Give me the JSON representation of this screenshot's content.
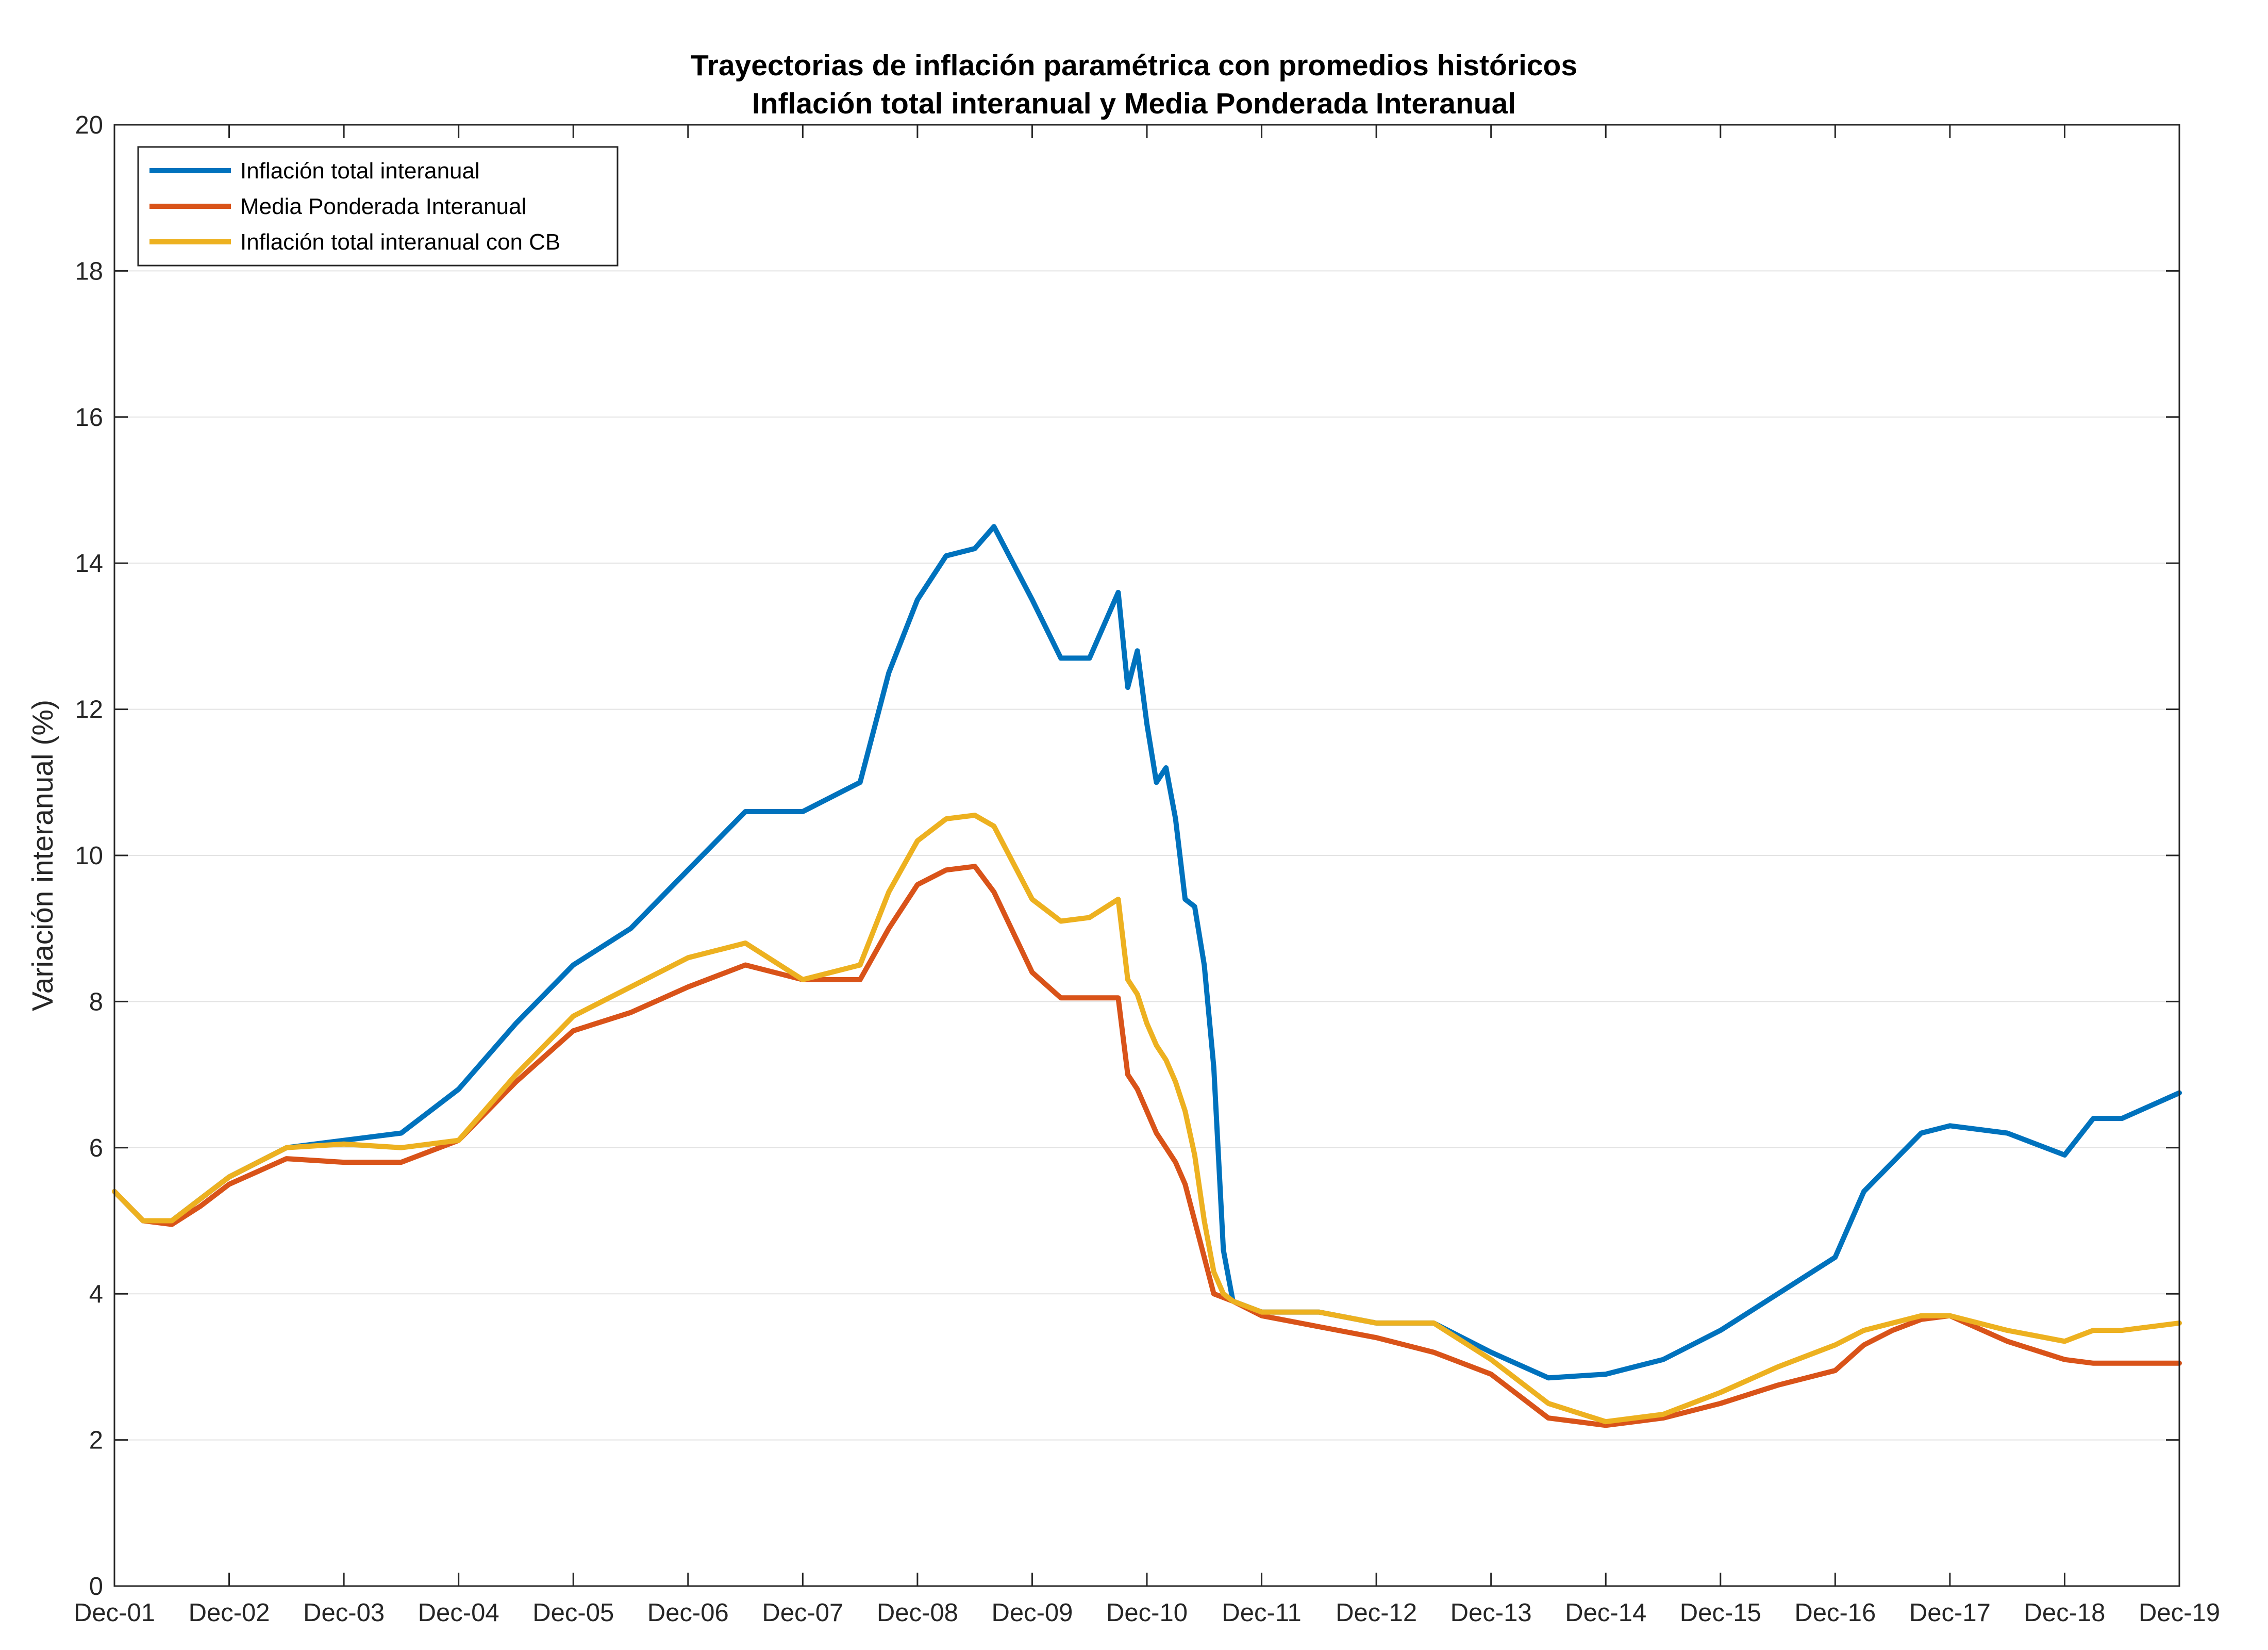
{
  "chart_data": {
    "type": "line",
    "title": "Trayectorias de inflación paramétrica con promedios históricos",
    "subtitle": "Inflación total interanual y Media Ponderada Interanual",
    "ylabel": "Variación interanual (%)",
    "xlabel": "",
    "ylim": [
      0,
      20
    ],
    "yticks": [
      "0",
      "2",
      "4",
      "6",
      "8",
      "10",
      "12",
      "14",
      "16",
      "18",
      "20"
    ],
    "x_tick_labels": [
      "Dec-01",
      "Dec-02",
      "Dec-03",
      "Dec-04",
      "Dec-05",
      "Dec-06",
      "Dec-07",
      "Dec-08",
      "Dec-09",
      "Dec-10",
      "Dec-11",
      "Dec-12",
      "Dec-13",
      "Dec-14",
      "Dec-15",
      "Dec-16",
      "Dec-17",
      "Dec-18",
      "Dec-19"
    ],
    "grid": true,
    "legend_position": "top-left",
    "series": [
      {
        "name": "Inflación total interanual",
        "color": "#0072BD",
        "points": [
          [
            "Dec-01",
            5.4
          ],
          [
            "Mar-02",
            5.0
          ],
          [
            "Jun-02",
            5.0
          ],
          [
            "Sep-02",
            5.3
          ],
          [
            "Dec-02",
            5.6
          ],
          [
            "Jun-03",
            6.0
          ],
          [
            "Dec-03",
            6.1
          ],
          [
            "Jun-04",
            6.2
          ],
          [
            "Dec-04",
            6.8
          ],
          [
            "Jun-05",
            7.7
          ],
          [
            "Dec-05",
            8.5
          ],
          [
            "Jun-06",
            9.0
          ],
          [
            "Dec-06",
            9.8
          ],
          [
            "Jun-07",
            10.6
          ],
          [
            "Dec-07",
            10.6
          ],
          [
            "Jun-08",
            11.0
          ],
          [
            "Sep-08",
            12.5
          ],
          [
            "Dec-08",
            13.5
          ],
          [
            "Mar-09",
            14.1
          ],
          [
            "Jun-09",
            14.2
          ],
          [
            "Aug-09",
            14.5
          ],
          [
            "Dec-09",
            13.5
          ],
          [
            "Mar-10",
            12.7
          ],
          [
            "Jun-10",
            12.7
          ],
          [
            "Sep-10",
            13.6
          ],
          [
            "Oct-10",
            12.3
          ],
          [
            "Nov-10",
            12.8
          ],
          [
            "Dec-10",
            11.8
          ],
          [
            "Jan-11",
            11.0
          ],
          [
            "Feb-11",
            11.2
          ],
          [
            "Mar-11",
            10.5
          ],
          [
            "Apr-11",
            9.4
          ],
          [
            "May-11",
            9.3
          ],
          [
            "Jun-11",
            8.5
          ],
          [
            "Jul-11",
            7.1
          ],
          [
            "Aug-11",
            4.6
          ],
          [
            "Sep-11",
            3.9
          ],
          [
            "Dec-11",
            3.75
          ],
          [
            "Jun-12",
            3.75
          ],
          [
            "Dec-12",
            3.6
          ],
          [
            "Jun-13",
            3.6
          ],
          [
            "Dec-13",
            3.2
          ],
          [
            "Jun-14",
            2.85
          ],
          [
            "Dec-14",
            2.9
          ],
          [
            "Jun-15",
            3.1
          ],
          [
            "Dec-15",
            3.5
          ],
          [
            "Jun-16",
            4.0
          ],
          [
            "Dec-16",
            4.5
          ],
          [
            "Mar-17",
            5.4
          ],
          [
            "Jun-17",
            5.8
          ],
          [
            "Sep-17",
            6.2
          ],
          [
            "Dec-17",
            6.3
          ],
          [
            "Jun-18",
            6.2
          ],
          [
            "Dec-18",
            5.9
          ],
          [
            "Mar-19",
            6.4
          ],
          [
            "Jun-19",
            6.4
          ],
          [
            "Dec-19",
            6.75
          ]
        ]
      },
      {
        "name": "Media Ponderada Interanual",
        "color": "#D95319",
        "points": [
          [
            "Dec-01",
            5.4
          ],
          [
            "Mar-02",
            5.0
          ],
          [
            "Jun-02",
            4.95
          ],
          [
            "Sep-02",
            5.2
          ],
          [
            "Dec-02",
            5.5
          ],
          [
            "Jun-03",
            5.85
          ],
          [
            "Dec-03",
            5.8
          ],
          [
            "Jun-04",
            5.8
          ],
          [
            "Dec-04",
            6.1
          ],
          [
            "Jun-05",
            6.9
          ],
          [
            "Dec-05",
            7.6
          ],
          [
            "Jun-06",
            7.85
          ],
          [
            "Dec-06",
            8.2
          ],
          [
            "Jun-07",
            8.5
          ],
          [
            "Dec-07",
            8.3
          ],
          [
            "Jun-08",
            8.3
          ],
          [
            "Sep-08",
            9.0
          ],
          [
            "Dec-08",
            9.6
          ],
          [
            "Mar-09",
            9.8
          ],
          [
            "Jun-09",
            9.85
          ],
          [
            "Aug-09",
            9.5
          ],
          [
            "Dec-09",
            8.4
          ],
          [
            "Mar-10",
            8.05
          ],
          [
            "Jun-10",
            8.05
          ],
          [
            "Sep-10",
            8.05
          ],
          [
            "Oct-10",
            7.0
          ],
          [
            "Nov-10",
            6.8
          ],
          [
            "Dec-10",
            6.5
          ],
          [
            "Jan-11",
            6.2
          ],
          [
            "Feb-11",
            6.0
          ],
          [
            "Mar-11",
            5.8
          ],
          [
            "Apr-11",
            5.5
          ],
          [
            "May-11",
            5.0
          ],
          [
            "Jun-11",
            4.5
          ],
          [
            "Jul-11",
            4.0
          ],
          [
            "Aug-11",
            3.95
          ],
          [
            "Sep-11",
            3.9
          ],
          [
            "Dec-11",
            3.7
          ],
          [
            "Jun-12",
            3.55
          ],
          [
            "Dec-12",
            3.4
          ],
          [
            "Jun-13",
            3.2
          ],
          [
            "Dec-13",
            2.9
          ],
          [
            "Jun-14",
            2.3
          ],
          [
            "Dec-14",
            2.2
          ],
          [
            "Jun-15",
            2.3
          ],
          [
            "Dec-15",
            2.5
          ],
          [
            "Jun-16",
            2.75
          ],
          [
            "Dec-16",
            2.95
          ],
          [
            "Mar-17",
            3.3
          ],
          [
            "Jun-17",
            3.5
          ],
          [
            "Sep-17",
            3.65
          ],
          [
            "Dec-17",
            3.7
          ],
          [
            "Jun-18",
            3.35
          ],
          [
            "Dec-18",
            3.1
          ],
          [
            "Mar-19",
            3.05
          ],
          [
            "Jun-19",
            3.05
          ],
          [
            "Dec-19",
            3.05
          ]
        ]
      },
      {
        "name": "Inflación total interanual con CB",
        "color": "#EDB120",
        "points": [
          [
            "Dec-01",
            5.4
          ],
          [
            "Mar-02",
            5.0
          ],
          [
            "Jun-02",
            5.0
          ],
          [
            "Sep-02",
            5.3
          ],
          [
            "Dec-02",
            5.6
          ],
          [
            "Jun-03",
            6.0
          ],
          [
            "Dec-03",
            6.05
          ],
          [
            "Jun-04",
            6.0
          ],
          [
            "Dec-04",
            6.1
          ],
          [
            "Jun-05",
            7.0
          ],
          [
            "Dec-05",
            7.8
          ],
          [
            "Jun-06",
            8.2
          ],
          [
            "Dec-06",
            8.6
          ],
          [
            "Jun-07",
            8.8
          ],
          [
            "Dec-07",
            8.3
          ],
          [
            "Jun-08",
            8.5
          ],
          [
            "Sep-08",
            9.5
          ],
          [
            "Dec-08",
            10.2
          ],
          [
            "Mar-09",
            10.5
          ],
          [
            "Jun-09",
            10.55
          ],
          [
            "Aug-09",
            10.4
          ],
          [
            "Dec-09",
            9.4
          ],
          [
            "Mar-10",
            9.1
          ],
          [
            "Jun-10",
            9.15
          ],
          [
            "Sep-10",
            9.4
          ],
          [
            "Oct-10",
            8.3
          ],
          [
            "Nov-10",
            8.1
          ],
          [
            "Dec-10",
            7.7
          ],
          [
            "Jan-11",
            7.4
          ],
          [
            "Feb-11",
            7.2
          ],
          [
            "Mar-11",
            6.9
          ],
          [
            "Apr-11",
            6.5
          ],
          [
            "May-11",
            5.9
          ],
          [
            "Jun-11",
            5.0
          ],
          [
            "Jul-11",
            4.3
          ],
          [
            "Aug-11",
            4.0
          ],
          [
            "Sep-11",
            3.9
          ],
          [
            "Dec-11",
            3.75
          ],
          [
            "Jun-12",
            3.75
          ],
          [
            "Dec-12",
            3.6
          ],
          [
            "Jun-13",
            3.6
          ],
          [
            "Dec-13",
            3.1
          ],
          [
            "Jun-14",
            2.5
          ],
          [
            "Dec-14",
            2.25
          ],
          [
            "Jun-15",
            2.35
          ],
          [
            "Dec-15",
            2.65
          ],
          [
            "Jun-16",
            3.0
          ],
          [
            "Dec-16",
            3.3
          ],
          [
            "Mar-17",
            3.5
          ],
          [
            "Jun-17",
            3.6
          ],
          [
            "Sep-17",
            3.7
          ],
          [
            "Dec-17",
            3.7
          ],
          [
            "Jun-18",
            3.5
          ],
          [
            "Dec-18",
            3.35
          ],
          [
            "Mar-19",
            3.5
          ],
          [
            "Jun-19",
            3.5
          ],
          [
            "Dec-19",
            3.6
          ]
        ]
      }
    ]
  }
}
